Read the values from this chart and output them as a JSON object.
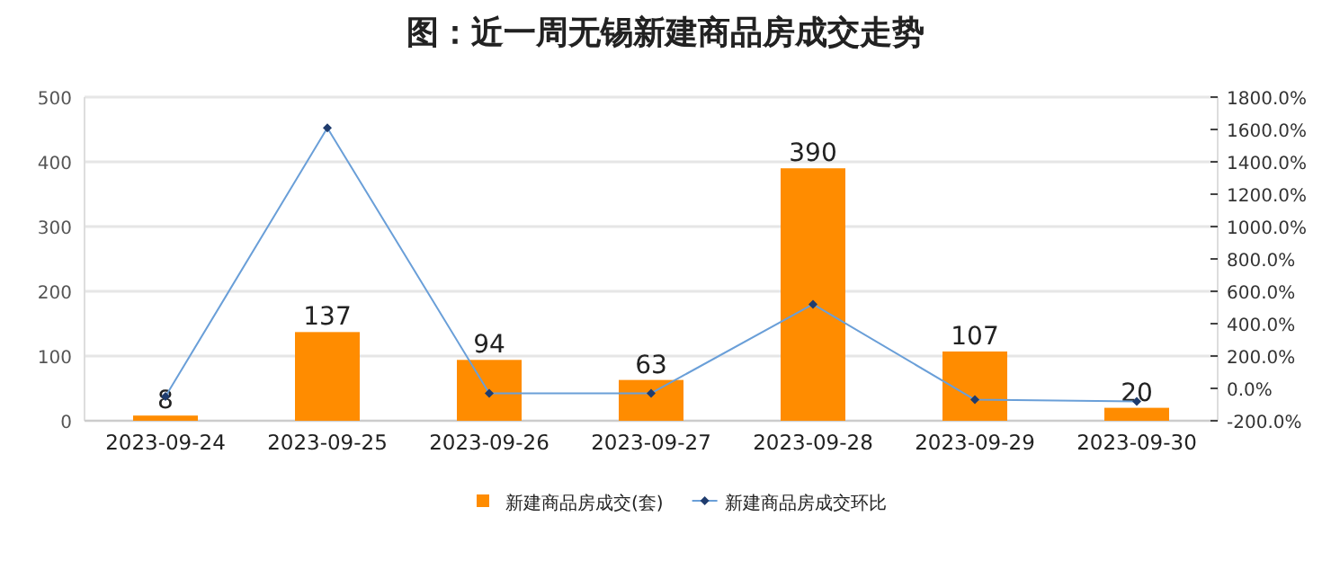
{
  "chart_data": {
    "type": "bar",
    "title": "图：近一周无锡新建商品房成交走势",
    "categories": [
      "2023-09-24",
      "2023-09-25",
      "2023-09-26",
      "2023-09-27",
      "2023-09-28",
      "2023-09-29",
      "2023-09-30"
    ],
    "series": [
      {
        "name": "新建商品房成交(套)",
        "color": "#ff8c00",
        "values": [
          8,
          137,
          94,
          63,
          390,
          107,
          20
        ],
        "data_labels": true
      },
      {
        "name": "新建商品房成交环比",
        "type": "line",
        "axis": "y2",
        "color": "#6a9fd8",
        "marker": "diamond",
        "values": [
          -50,
          1610,
          -30,
          -30,
          520,
          -70,
          -80
        ]
      }
    ],
    "ylim": [
      0,
      500
    ],
    "yticks": [
      0,
      100,
      200,
      300,
      400,
      500
    ],
    "y2lim": [
      -200,
      1800
    ],
    "y2ticks": [
      {
        "value": -200,
        "label": "-200.0%"
      },
      {
        "value": 0,
        "label": "0.0%"
      },
      {
        "value": 200,
        "label": "200.0%"
      },
      {
        "value": 400,
        "label": "400.0%"
      },
      {
        "value": 600,
        "label": "600.0%"
      },
      {
        "value": 800,
        "label": "800.0%"
      },
      {
        "value": 1000,
        "label": "1000.0%"
      },
      {
        "value": 1200,
        "label": "1200.0%"
      },
      {
        "value": 1400,
        "label": "1400.0%"
      },
      {
        "value": 1600,
        "label": "1600.0%"
      },
      {
        "value": 1800,
        "label": "1800.0%"
      }
    ],
    "grid": "y",
    "legend": "bottom"
  }
}
